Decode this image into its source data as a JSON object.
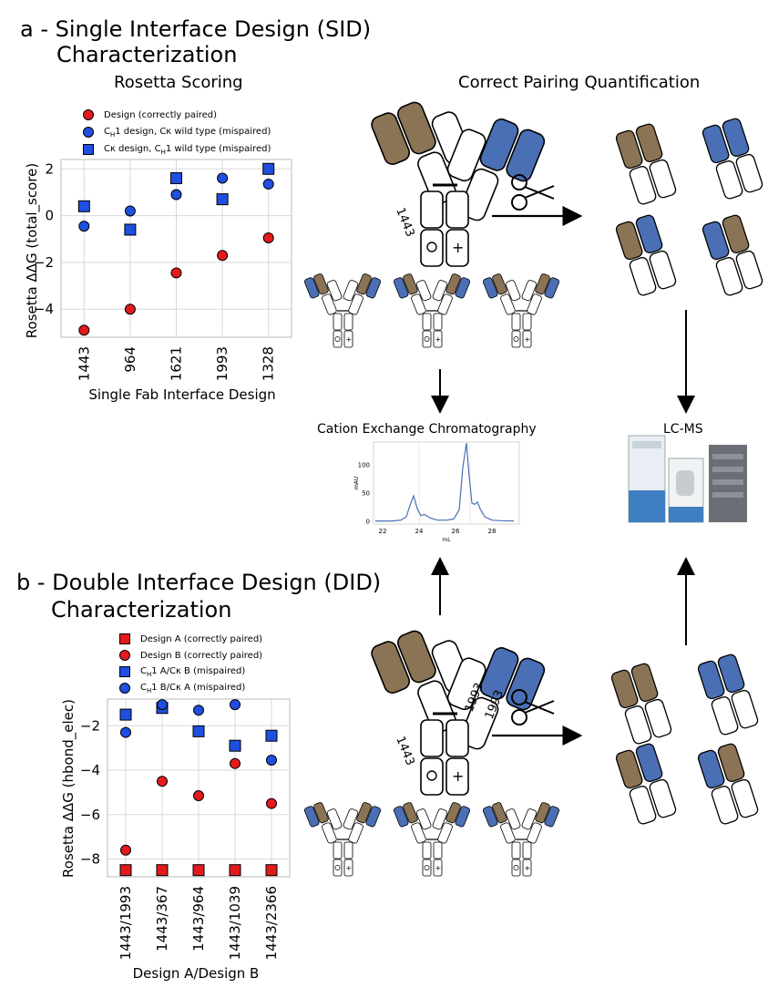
{
  "panel_a": {
    "title_line1": "a - Single Interface Design (SID)",
    "title_line2": "Characterization",
    "scoring_title": "Rosetta Scoring",
    "pairing_title": "Correct Pairing Quantification"
  },
  "panel_b": {
    "title_line1": "b - Double Interface Design (DID)",
    "title_line2": "Characterization"
  },
  "legend_a": [
    {
      "marker": "circle",
      "color": "#e31a1c",
      "label": "Design (correctly paired)"
    },
    {
      "marker": "circle",
      "color": "#1f4fe0",
      "label": "C",
      "sub": "H",
      "label_rest": "1 design, Cκ wild type (mispaired)"
    },
    {
      "marker": "square",
      "color": "#1f4fe0",
      "label": "Cκ design, C",
      "sub": "H",
      "label_rest": "1 wild type (mispaired)"
    }
  ],
  "legend_b": [
    {
      "marker": "square",
      "color": "#e31a1c",
      "label": "Design A (correctly paired)"
    },
    {
      "marker": "circle",
      "color": "#e31a1c",
      "label": "Design B (correctly paired)"
    },
    {
      "marker": "square",
      "color": "#1f4fe0",
      "label": "C",
      "sub": "H",
      "label_rest": "1 A/Cκ B (mispaired)"
    },
    {
      "marker": "circle",
      "color": "#1f4fe0",
      "label": "C",
      "sub": "H",
      "label_rest": "1 B/Cκ A (mispaired)"
    }
  ],
  "chart_data": [
    {
      "type": "scatter",
      "xlabel": "Single Fab Interface Design",
      "ylabel": "Rosetta ΔΔG (total_score)",
      "categories": [
        "1443",
        "964",
        "1621",
        "1993",
        "1328"
      ],
      "ylim": [
        -5.2,
        2.4
      ],
      "yticks": [
        2,
        0,
        -2,
        -4
      ],
      "ytick_labels": [
        "2",
        "0",
        "−2",
        "−4"
      ],
      "grid": true,
      "series": [
        {
          "name": "Design (correctly paired)",
          "marker": "circle",
          "color": "#e31a1c",
          "values": [
            -4.9,
            -4.0,
            -2.45,
            -1.7,
            -0.95
          ]
        },
        {
          "name": "CH1 design, Cκ wild type (mispaired)",
          "marker": "circle",
          "color": "#1f4fe0",
          "values": [
            -0.45,
            0.2,
            0.9,
            1.6,
            1.35
          ]
        },
        {
          "name": "Cκ design, CH1 wild type (mispaired)",
          "marker": "square",
          "color": "#1f4fe0",
          "values": [
            0.4,
            -0.6,
            1.6,
            0.7,
            2.0
          ]
        }
      ]
    },
    {
      "type": "scatter",
      "xlabel": "Design A/Design B",
      "ylabel": "Rosetta ΔΔG (hbond_elec)",
      "categories": [
        "1443/1993",
        "1443/367",
        "1443/964",
        "1443/1039",
        "1443/2366"
      ],
      "ylim": [
        -8.8,
        -0.8
      ],
      "yticks": [
        -2,
        -4,
        -6,
        -8
      ],
      "ytick_labels": [
        "−2",
        "−4",
        "−6",
        "−8"
      ],
      "grid": true,
      "series": [
        {
          "name": "Design A (correctly paired)",
          "marker": "square",
          "color": "#e31a1c",
          "values": [
            -8.5,
            -8.5,
            -8.5,
            -8.5,
            -8.5
          ]
        },
        {
          "name": "Design B (correctly paired)",
          "marker": "circle",
          "color": "#e31a1c",
          "values": [
            -7.6,
            -4.5,
            -5.15,
            -3.7,
            -5.5
          ]
        },
        {
          "name": "CH1 A/Cκ B (mispaired)",
          "marker": "square",
          "color": "#1f4fe0",
          "values": [
            -1.5,
            -1.2,
            -2.25,
            -2.9,
            -2.45
          ]
        },
        {
          "name": "CH1 B/Cκ A (mispaired)",
          "marker": "circle",
          "color": "#1f4fe0",
          "values": [
            -2.3,
            -1.05,
            -1.3,
            -1.05,
            -3.55
          ]
        }
      ]
    },
    {
      "type": "line",
      "xlabel": "mL",
      "ylabel": "mAU",
      "xlim": [
        21.5,
        29.5
      ],
      "ylim": [
        -5,
        140
      ],
      "xticks": [
        22,
        24,
        26,
        28
      ],
      "yticks": [
        0,
        50,
        100
      ],
      "series": [
        {
          "name": "",
          "color": "#4a6fb5",
          "x": [
            21.6,
            22.5,
            23.0,
            23.3,
            23.5,
            23.7,
            23.9,
            24.1,
            24.3,
            24.6,
            25.0,
            25.5,
            25.9,
            26.2,
            26.4,
            26.6,
            26.75,
            26.9,
            27.05,
            27.2,
            27.35,
            27.6,
            28.0,
            28.5,
            29.2
          ],
          "y": [
            0.5,
            0.5,
            2,
            8,
            28,
            45,
            22,
            10,
            12,
            6,
            2,
            2,
            4,
            20,
            95,
            138,
            80,
            32,
            30,
            34,
            22,
            8,
            2,
            1,
            0.5
          ]
        }
      ]
    }
  ],
  "labels": {
    "cex_title": "Cation Exchange Chromatography",
    "lcms_title": "LC-MS"
  },
  "antibody": {
    "sid_label": "1443",
    "did_label_a": "1443",
    "did_label_b": "1993"
  },
  "colors": {
    "brown": "#8b7355",
    "blue": "#4a6fb5",
    "red": "#e31a1c",
    "marker_blue": "#1f4fe0"
  }
}
